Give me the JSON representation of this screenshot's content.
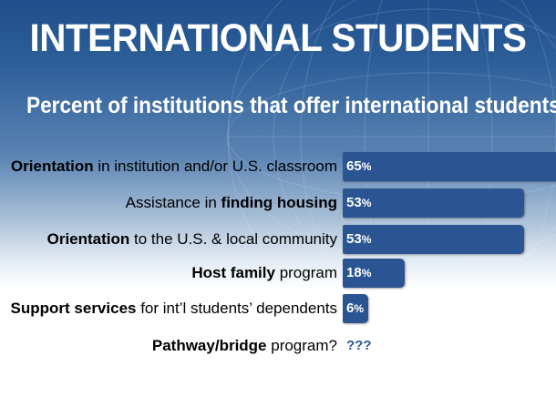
{
  "title": "INTERNATIONAL STUDENTS",
  "subtitle": "Percent of institutions that offer international students:",
  "colors": {
    "bar": "#2a5592",
    "header_bg": "#1f4f8c",
    "unknown_text": "#2a5592"
  },
  "chart_data": {
    "type": "bar",
    "orientation": "horizontal",
    "title": "INTERNATIONAL STUDENTS",
    "subtitle": "Percent of institutions that offer international students:",
    "xlim": [
      0,
      100
    ],
    "grid": false,
    "categories": [
      "Orientation in institution and/or U.S. classroom",
      "Assistance in finding housing",
      "Orientation to the U.S. & local community",
      "Host family program",
      "Support services for int'l students' dependents",
      "Pathway/bridge program?"
    ],
    "values": [
      65,
      53,
      53,
      18,
      6,
      null
    ],
    "unknown_label": "???"
  },
  "rows": [
    {
      "bold": "Orientation",
      "rest": " in institution and/or U.S. classroom",
      "value": 65,
      "num": "65",
      "unit": "%"
    },
    {
      "pre": "Assistance in ",
      "bold": "finding housing",
      "value": 53,
      "num": "53",
      "unit": "%"
    },
    {
      "bold": "Orientation",
      "rest": " to the U.S. & local community",
      "value": 53,
      "num": "53",
      "unit": "%"
    },
    {
      "bold": "Host family",
      "rest": " program",
      "value": 18,
      "num": "18",
      "unit": "%"
    },
    {
      "bold": "Support services",
      "rest": " for int’l students’ dependents",
      "value": 6,
      "num": "6",
      "unit": "%"
    },
    {
      "bold": "Pathway/bridge",
      "rest": " program?",
      "unknown": "???"
    }
  ]
}
